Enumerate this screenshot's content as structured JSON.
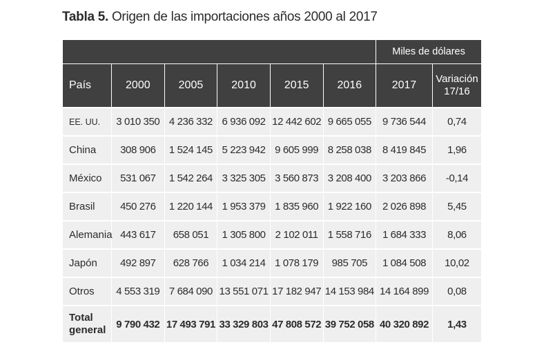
{
  "title": {
    "label": "Tabla 5.",
    "text": "Origen de las importaciones años 2000 al 2017"
  },
  "units": "Miles de dólares",
  "headers": {
    "country": "País",
    "years": [
      "2000",
      "2005",
      "2010",
      "2015",
      "2016",
      "2017"
    ],
    "variation_line1": "Variación",
    "variation_line2": "17/16"
  },
  "rows": [
    {
      "country": "EE. UU.",
      "values": [
        "3 010 350",
        "4 236 332",
        "6 936 092",
        "12 442 602",
        "9 665 055",
        "9 736 544"
      ],
      "variation": "0,74"
    },
    {
      "country": "China",
      "values": [
        "308 906",
        "1 524 145",
        "5 223 942",
        "9 605 999",
        "8 258 038",
        "8 419 845"
      ],
      "variation": "1,96"
    },
    {
      "country": "México",
      "values": [
        "531 067",
        "1 542 264",
        "3 325 305",
        "3 560 873",
        "3 208 400",
        "3 203 866"
      ],
      "variation": "-0,14"
    },
    {
      "country": "Brasil",
      "values": [
        "450 276",
        "1 220 144",
        "1 953 379",
        "1 835 960",
        "1 922 160",
        "2 026 898"
      ],
      "variation": "5,45"
    },
    {
      "country": "Alemania",
      "values": [
        "443 617",
        "658 051",
        "1 305 800",
        "2 102 011",
        "1 558 716",
        "1 684 333"
      ],
      "variation": "8,06"
    },
    {
      "country": "Japón",
      "values": [
        "492 897",
        "628 766",
        "1 034 214",
        "1 078 179",
        "985 705",
        "1 084 508"
      ],
      "variation": "10,02"
    },
    {
      "country": "Otros",
      "values": [
        "4 553 319",
        "7 684 090",
        "13 551 071",
        "17 182 947",
        "14 153 984",
        "14 164 899"
      ],
      "variation": "0,08"
    }
  ],
  "total": {
    "label_line1": "Total",
    "label_line2": "general",
    "values": [
      "9 790 432",
      "17 493 791",
      "33 329 803",
      "47 808 572",
      "39 752 058",
      "40 320 892"
    ],
    "variation": "1,43"
  }
}
